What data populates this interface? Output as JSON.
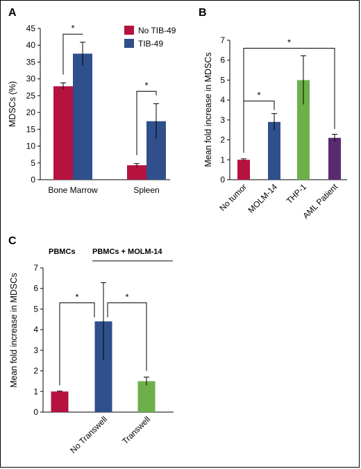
{
  "colors": {
    "red": "#b5123f",
    "blue": "#2f4f8d",
    "green": "#6db04a",
    "purple": "#5a2a6e"
  },
  "chart_data": [
    {
      "panel": "A",
      "type": "bar",
      "categories": [
        "Bone Marrow",
        "Spleen"
      ],
      "series": [
        {
          "name": "No TIB-49",
          "color": "red",
          "values": [
            27.8,
            4.3
          ],
          "errors": [
            1.0,
            0.5
          ]
        },
        {
          "name": "TIB-49",
          "color": "blue",
          "values": [
            37.5,
            17.4
          ],
          "errors": [
            3.4,
            5.2
          ]
        }
      ],
      "ylabel": "MDSCs (%)",
      "ylim": [
        0,
        45
      ],
      "yticks": [
        0,
        5,
        10,
        15,
        20,
        25,
        30,
        35,
        40,
        45
      ],
      "legend": "top-right",
      "significance": [
        {
          "label": "*",
          "between": "No TIB-49 vs TIB-49",
          "category": "Bone Marrow"
        },
        {
          "label": "*",
          "between": "No TIB-49 vs TIB-49",
          "category": "Spleen"
        }
      ]
    },
    {
      "panel": "B",
      "type": "bar",
      "categories": [
        "No tumor",
        "MOLM-14",
        "THP-1",
        "AML Patient"
      ],
      "values": [
        1.0,
        2.9,
        5.0,
        2.1
      ],
      "errors": [
        0.05,
        0.42,
        1.22,
        0.18
      ],
      "bar_colors": [
        "red",
        "blue",
        "green",
        "purple"
      ],
      "ylabel": "Mean fold increase in MDSCs",
      "ylim": [
        0,
        7
      ],
      "yticks": [
        0,
        1,
        2,
        3,
        4,
        5,
        6,
        7
      ],
      "significance": [
        {
          "label": "*",
          "between": "No tumor vs MOLM-14"
        },
        {
          "label": "*",
          "between": "No tumor vs AML Patient"
        }
      ]
    },
    {
      "panel": "C",
      "type": "bar",
      "categories": [
        "No Transwell",
        "Transwell"
      ],
      "bars": [
        {
          "category": "",
          "value": 1.0,
          "error": 0.02,
          "color": "red"
        },
        {
          "category": "No Transwell",
          "value": 4.4,
          "error": 1.88,
          "color": "blue"
        },
        {
          "category": "Transwell",
          "value": 1.5,
          "error": 0.2,
          "color": "green"
        }
      ],
      "group_labels": [
        "PBMCs",
        "PBMCs + MOLM-14"
      ],
      "ylabel": "Mean fold increase in MDSCs",
      "ylim": [
        0,
        7
      ],
      "yticks": [
        0,
        1,
        2,
        3,
        4,
        5,
        6,
        7
      ],
      "significance": [
        {
          "label": "*",
          "between": "PBMCs vs No Transwell"
        },
        {
          "label": "*",
          "between": "No Transwell vs Transwell"
        }
      ]
    }
  ]
}
